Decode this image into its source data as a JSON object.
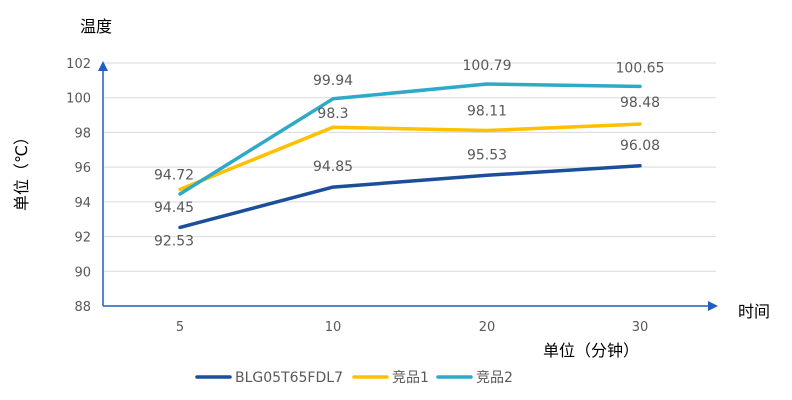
{
  "chart_data": {
    "type": "line",
    "y_title": "温度",
    "ylabel": "单位（℃）",
    "x_title": "时间",
    "xlabel": "单位（分钟）",
    "categories": [
      "5",
      "10",
      "20",
      "30"
    ],
    "ylim": [
      88,
      102
    ],
    "yticks": [
      "88",
      "90",
      "92",
      "94",
      "96",
      "98",
      "100",
      "102"
    ],
    "grid": true,
    "legend_position": "bottom",
    "series": [
      {
        "name": "BLG05T65FDL7",
        "color": "#1B4E9B",
        "values": [
          92.53,
          94.85,
          95.53,
          96.08
        ],
        "labels": [
          "92.53",
          "94.85",
          "95.53",
          "96.08"
        ]
      },
      {
        "name": "竞品1",
        "color": "#FFC000",
        "values": [
          94.72,
          98.3,
          98.11,
          98.48
        ],
        "labels": [
          "94.72",
          "98.3",
          "98.11",
          "98.48"
        ]
      },
      {
        "name": "竞品2",
        "color": "#2EA9C8",
        "values": [
          94.45,
          99.94,
          100.79,
          100.65
        ],
        "labels": [
          "94.45",
          "99.94",
          "100.79",
          "100.65"
        ]
      }
    ]
  },
  "colors": {
    "axis": "#1F5FBF",
    "grid": "#D9D9D9",
    "text": "#595959",
    "title": "#000000"
  }
}
